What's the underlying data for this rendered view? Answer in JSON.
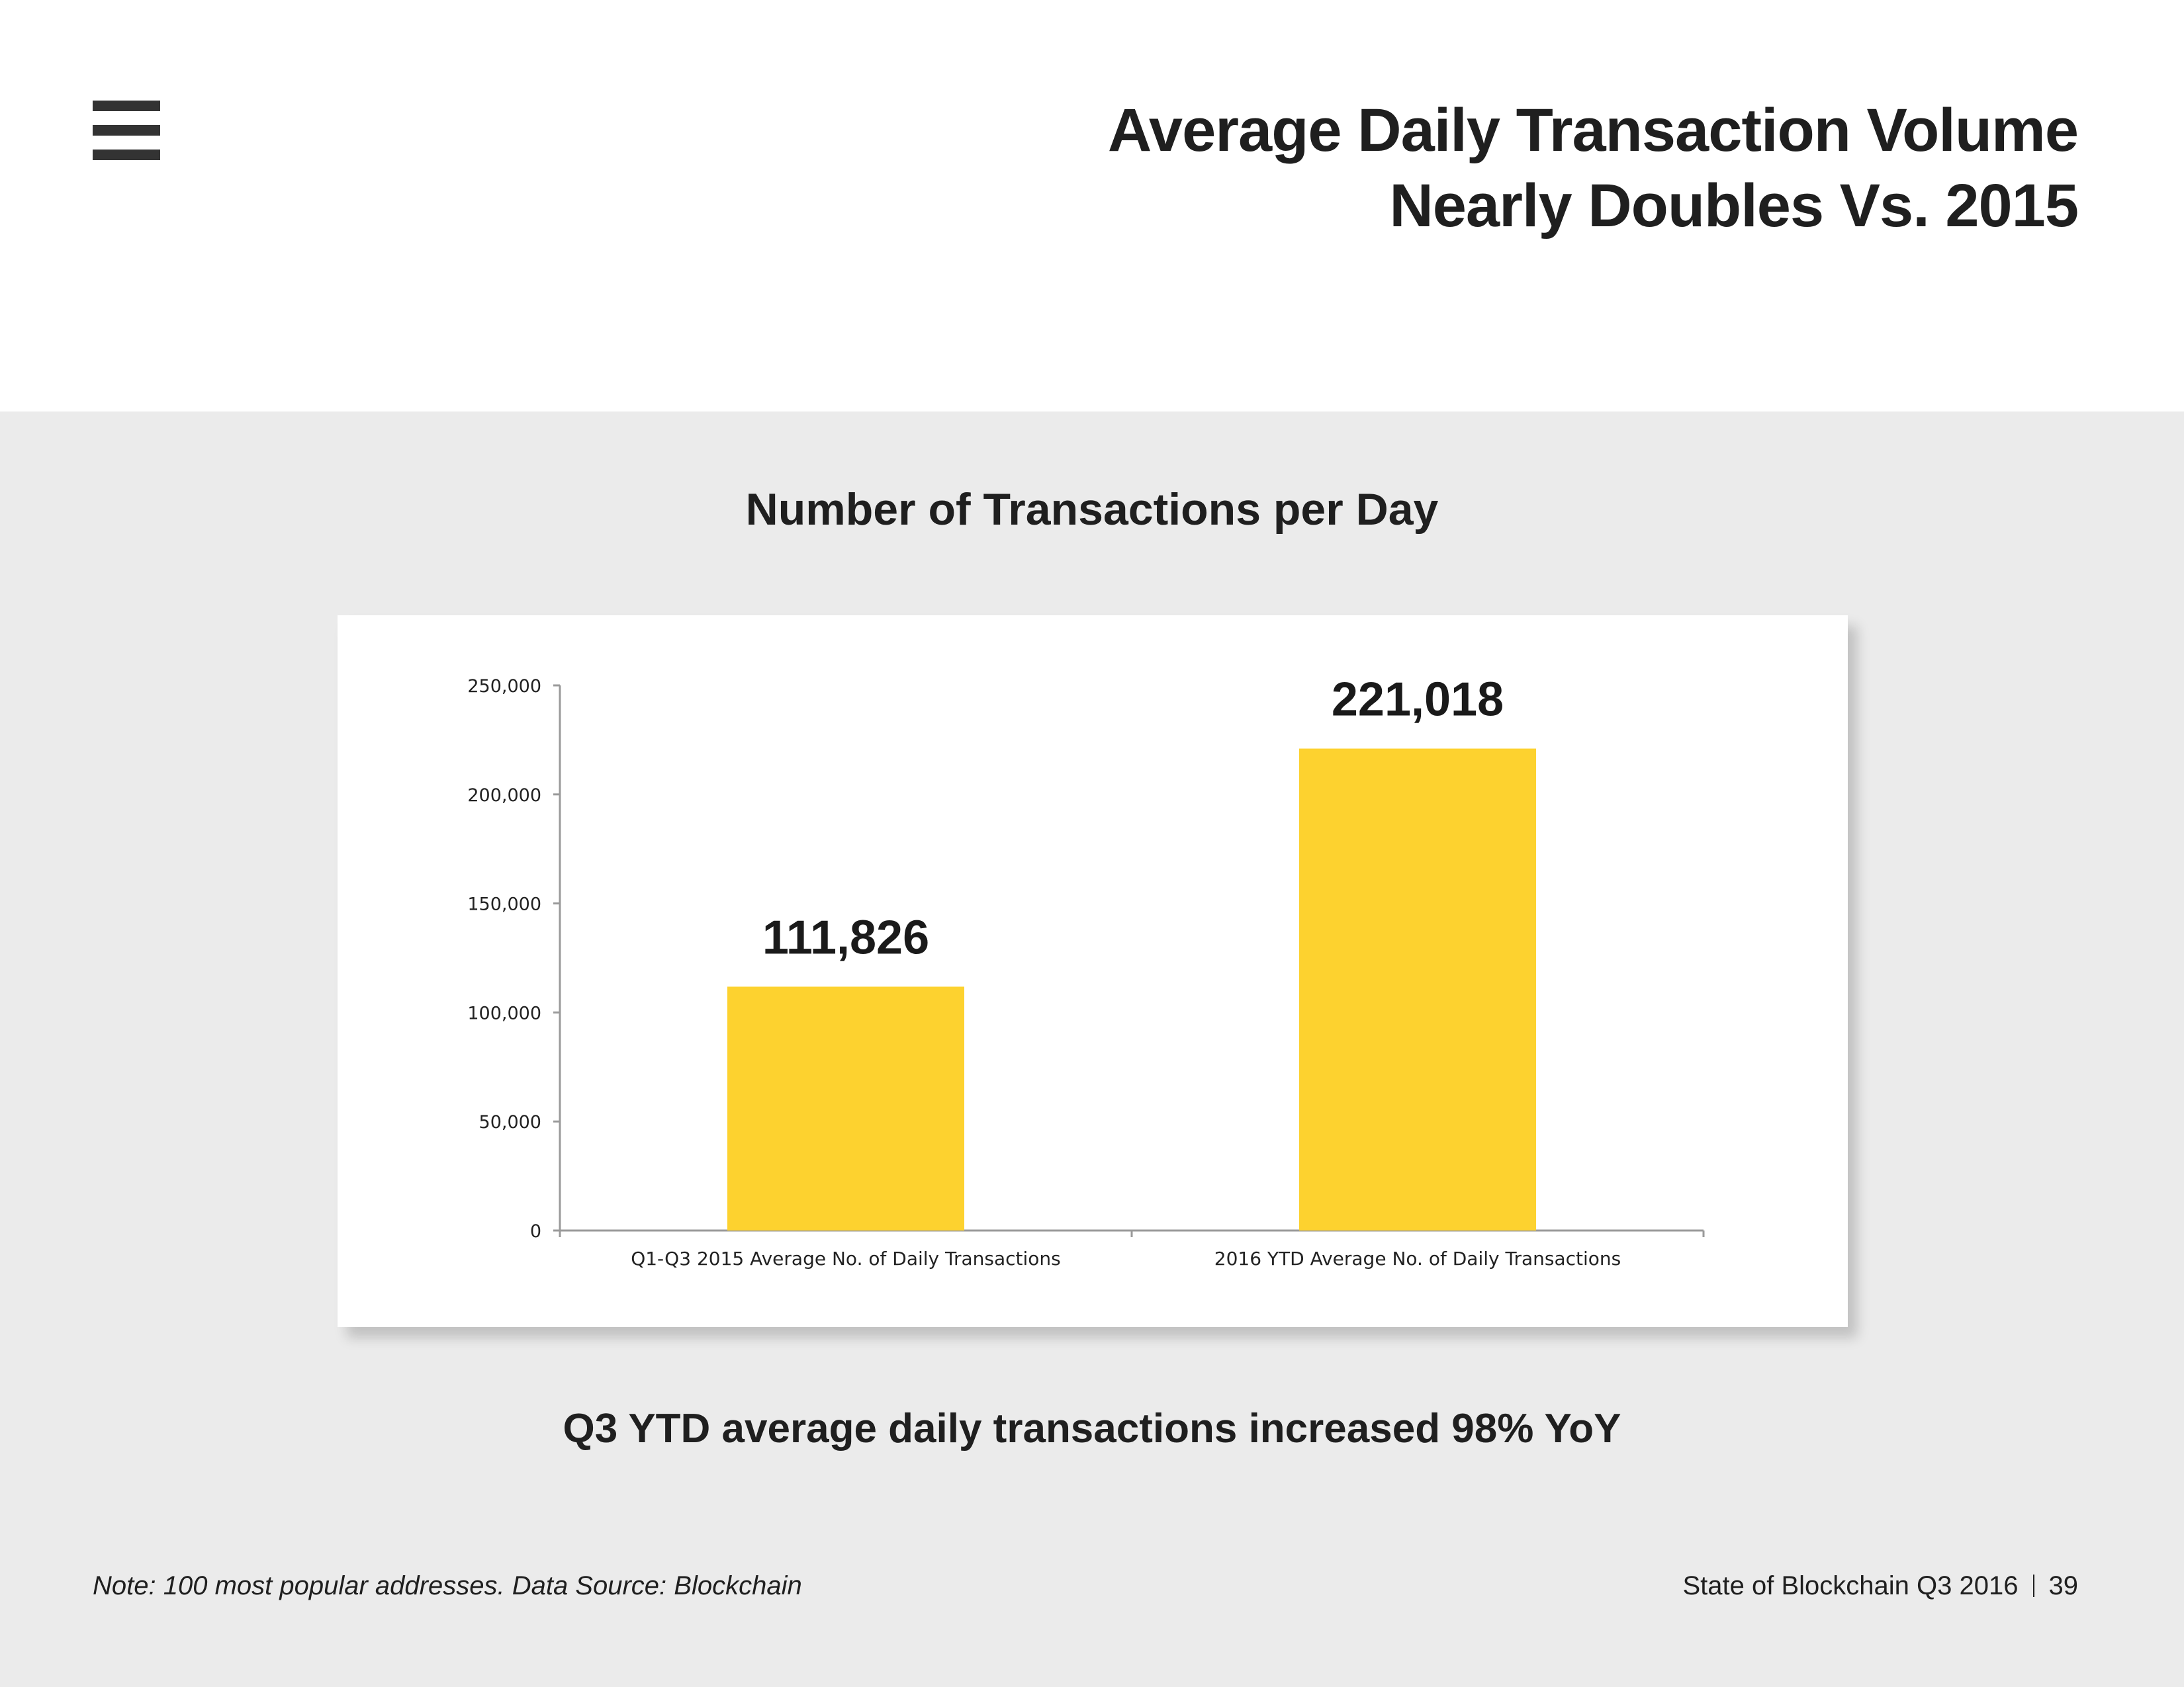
{
  "header": {
    "menu_icon": "hamburger-menu-icon",
    "title_line1": "Average Daily Transaction Volume",
    "title_line2": "Nearly Doubles Vs. 2015"
  },
  "chart_heading": "Number of Transactions per Day",
  "chart_data": {
    "type": "bar",
    "title": "",
    "xlabel": "",
    "ylabel": "",
    "categories": [
      "Q1-Q3 2015 Average No. of Daily Transactions",
      "2016 YTD Average No. of Daily Transactions"
    ],
    "values": [
      111826,
      221018
    ],
    "data_labels": [
      "111,826",
      "221,018"
    ],
    "ylim": [
      0,
      250000
    ],
    "yticks": [
      0,
      50000,
      100000,
      150000,
      200000,
      250000
    ],
    "ytick_labels": [
      "0",
      "50,000",
      "100,000",
      "150,000",
      "200,000",
      "250,000"
    ],
    "bar_color": "#FDD22F",
    "grid": false,
    "legend": "none"
  },
  "caption": "Q3 YTD average daily transactions increased 98% YoY",
  "footer": {
    "note": "Note: 100 most popular addresses. Data Source: Blockchain",
    "report": "State of Blockchain Q3 2016",
    "page_number": "39"
  }
}
